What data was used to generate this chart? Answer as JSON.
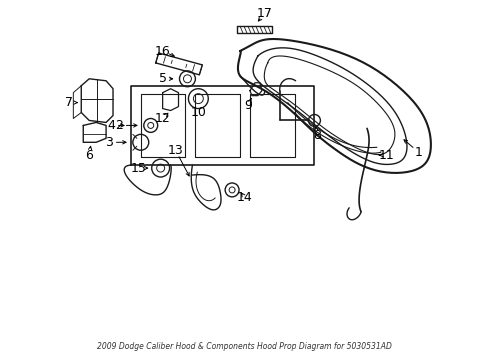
{
  "title": "2009 Dodge Caliber Hood & Components Hood Prop Diagram for 5030531AD",
  "bg_color": "#ffffff",
  "line_color": "#1a1a1a",
  "text_color": "#000000",
  "fig_width": 4.89,
  "fig_height": 3.6,
  "dpi": 100
}
